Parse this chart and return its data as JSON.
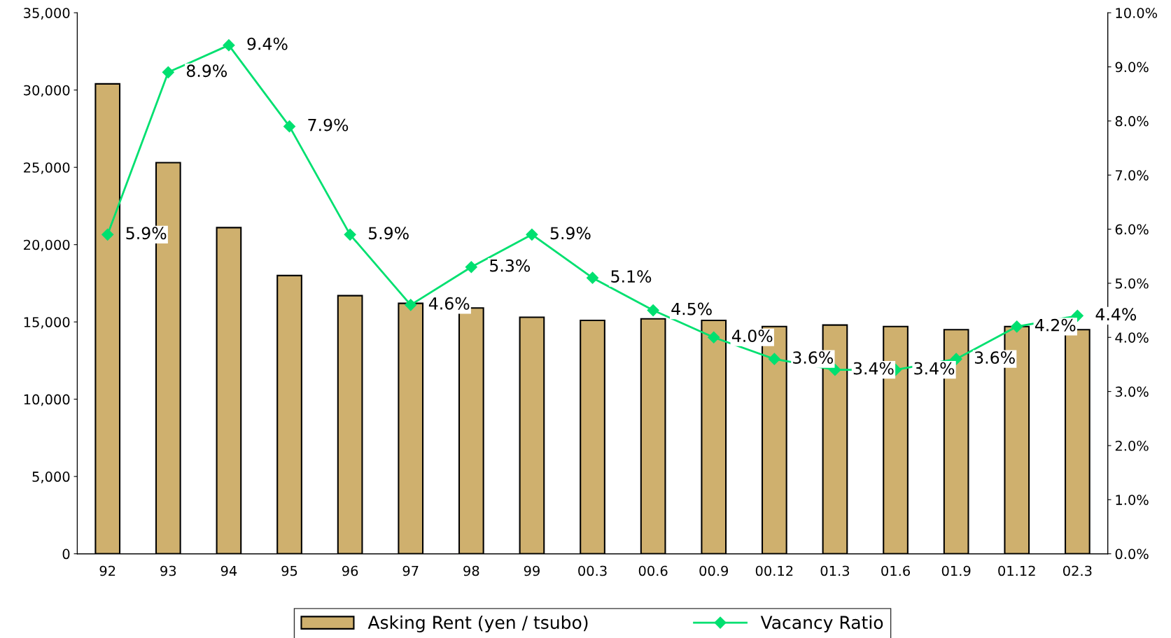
{
  "chart_data": {
    "type": "bar",
    "categories": [
      "92",
      "93",
      "94",
      "95",
      "96",
      "97",
      "98",
      "99",
      "00.3",
      "00.6",
      "00.9",
      "00.12",
      "01.3",
      "01.6",
      "01.9",
      "01.12",
      "02.3"
    ],
    "series": [
      {
        "name": "Asking Rent (yen / tsubo)",
        "color": "#cfb06e",
        "values": [
          30400,
          25300,
          21100,
          18000,
          16700,
          16200,
          15900,
          15300,
          15100,
          15200,
          15100,
          14700,
          14800,
          14700,
          14500,
          14700,
          14500
        ]
      },
      {
        "name": "Vacancy Ratio",
        "type": "line",
        "axis": "y2",
        "color": "#00e070",
        "marker": "diamond",
        "values": [
          5.9,
          8.9,
          9.4,
          7.9,
          5.9,
          4.6,
          5.3,
          5.9,
          5.1,
          4.5,
          4.0,
          3.6,
          3.4,
          3.4,
          3.6,
          4.2,
          4.4
        ],
        "value_labels": [
          "5.9%",
          "8.9%",
          "9.4%",
          "7.9%",
          "5.9%",
          "4.6%",
          "5.3%",
          "5.9%",
          "5.1%",
          "4.5%",
          "4.0%",
          "3.6%",
          "3.4%",
          "3.4%",
          "3.6%",
          "4.2%",
          "4.4%"
        ]
      }
    ],
    "ylim": [
      0,
      35000
    ],
    "yticks": [
      {
        "value": 0,
        "label": "0"
      },
      {
        "value": 5000,
        "label": "5,000"
      },
      {
        "value": 10000,
        "label": "10,000"
      },
      {
        "value": 15000,
        "label": "15,000"
      },
      {
        "value": 20000,
        "label": "20,000"
      },
      {
        "value": 25000,
        "label": "25,000"
      },
      {
        "value": 30000,
        "label": "30,000"
      },
      {
        "value": 35000,
        "label": "35,000"
      }
    ],
    "y2lim": [
      0,
      10
    ],
    "y2ticks": [
      {
        "value": 0,
        "label": "0.0%"
      },
      {
        "value": 1,
        "label": "1.0%"
      },
      {
        "value": 2,
        "label": "2.0%"
      },
      {
        "value": 3,
        "label": "3.0%"
      },
      {
        "value": 4,
        "label": "4.0%"
      },
      {
        "value": 5,
        "label": "5.0%"
      },
      {
        "value": 6,
        "label": "6.0%"
      },
      {
        "value": 7,
        "label": "7.0%"
      },
      {
        "value": 8,
        "label": "8.0%"
      },
      {
        "value": 9,
        "label": "9.0%"
      },
      {
        "value": 10,
        "label": "10.0%"
      }
    ],
    "grid": false,
    "legend": "bottom"
  }
}
